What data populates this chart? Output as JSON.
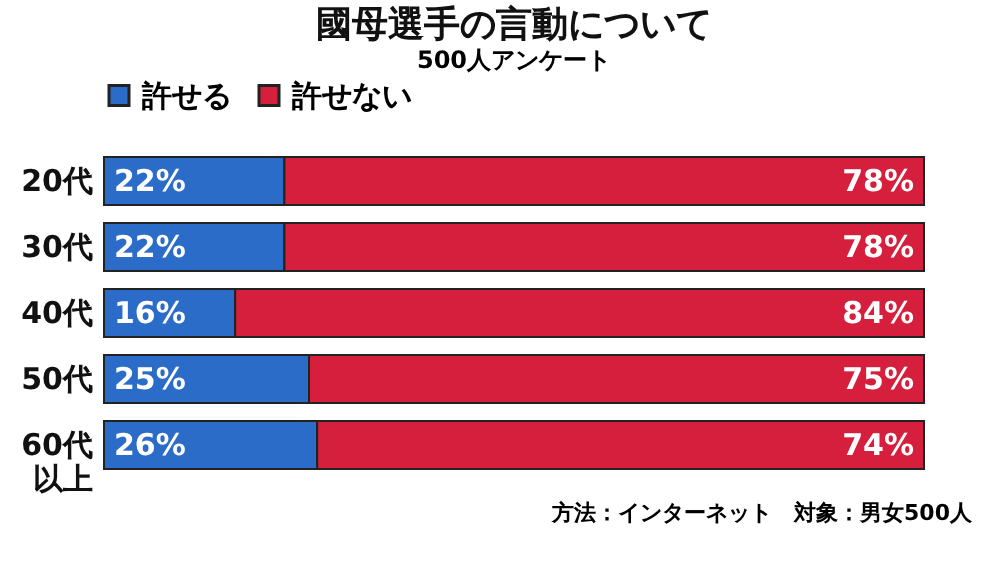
{
  "chart_data": {
    "type": "bar",
    "orientation": "horizontal",
    "stacked": true,
    "title": "國母選手の言動について",
    "subtitle": "500人アンケート",
    "categories": [
      "20代",
      "30代",
      "40代",
      "50代",
      "60代以上"
    ],
    "xlim": [
      0,
      100
    ],
    "legend": "top",
    "series": [
      {
        "name": "許せる",
        "color": "#2a6cc8",
        "values": [
          22,
          22,
          16,
          25,
          26
        ],
        "value_labels": [
          "22%",
          "22%",
          "16%",
          "25%",
          "26%"
        ]
      },
      {
        "name": "許せない",
        "color": "#d61f3c",
        "values": [
          78,
          78,
          84,
          75,
          74
        ],
        "value_labels": [
          "78%",
          "78%",
          "84%",
          "75%",
          "74%"
        ]
      }
    ],
    "annotations": [
      "方法：インターネット　対象：男女500人"
    ]
  }
}
